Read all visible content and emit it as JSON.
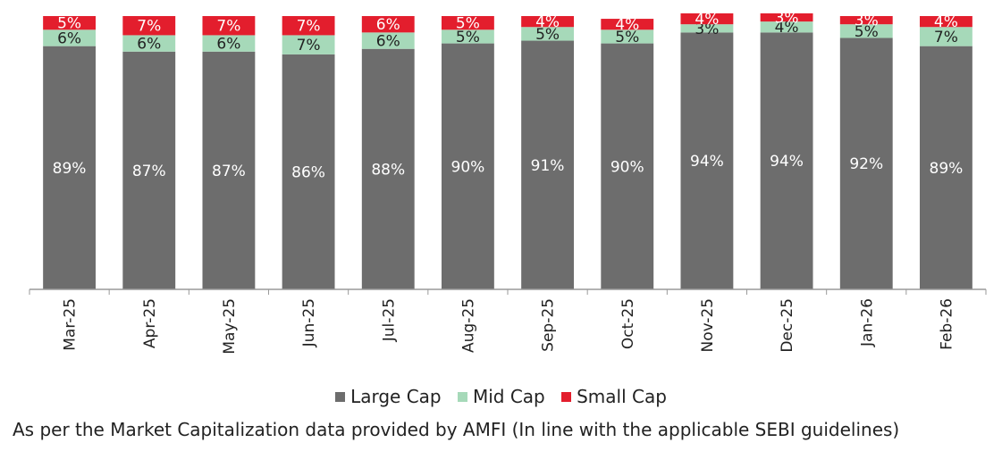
{
  "chart_data": {
    "type": "bar",
    "stacked": true,
    "categories": [
      "Mar-25",
      "Apr-25",
      "May-25",
      "Jun-25",
      "Jul-25",
      "Aug-25",
      "Sep-25",
      "Oct-25",
      "Nov-25",
      "Dec-25",
      "Jan-26",
      "Feb-26"
    ],
    "series": [
      {
        "name": "Large Cap",
        "color": "#6d6d6d",
        "values": [
          89,
          87,
          87,
          86,
          88,
          90,
          91,
          90,
          94,
          94,
          92,
          89
        ],
        "labels": [
          "89%",
          "87%",
          "87%",
          "86%",
          "88%",
          "90%",
          "91%",
          "90%",
          "94%",
          "94%",
          "92%",
          "89%"
        ]
      },
      {
        "name": "Mid Cap",
        "color": "#a6d9b9",
        "values": [
          6,
          6,
          6,
          7,
          6,
          5,
          5,
          5,
          3,
          4,
          5,
          7
        ],
        "labels": [
          "6%",
          "6%",
          "6%",
          "7%",
          "6%",
          "5%",
          "5%",
          "5%",
          "3%",
          "4%",
          "5%",
          "7%"
        ]
      },
      {
        "name": "Small Cap",
        "color": "#e31e2d",
        "values": [
          5,
          7,
          7,
          7,
          6,
          5,
          4,
          4,
          4,
          3,
          3,
          4
        ],
        "labels": [
          "5%",
          "7%",
          "7%",
          "7%",
          "6%",
          "5%",
          "4%",
          "4%",
          "4%",
          "3%",
          "3%",
          "4%"
        ]
      }
    ],
    "ylim": [
      0,
      100
    ],
    "title": "",
    "xlabel": "",
    "ylabel": "",
    "legend_position": "bottom"
  },
  "legend": {
    "large_cap": "Large Cap",
    "mid_cap": "Mid Cap",
    "small_cap": "Small Cap"
  },
  "footnote": "As per the Market Capitalization data provided by AMFI (In line with the applicable SEBI guidelines)"
}
